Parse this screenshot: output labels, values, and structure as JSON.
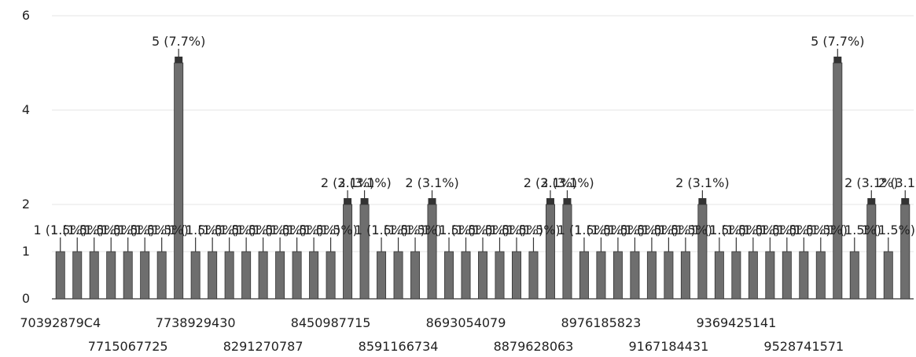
{
  "chart_data": {
    "type": "bar",
    "title": "",
    "xlabel": "",
    "ylabel": "",
    "ylim": [
      0,
      6
    ],
    "yticks": [
      "0",
      "1",
      "2",
      "4",
      "6"
    ],
    "grid": true,
    "values": [
      1,
      1,
      1,
      1,
      1,
      1,
      1,
      5,
      1,
      1,
      1,
      1,
      1,
      1,
      1,
      1,
      1,
      2,
      2,
      1,
      1,
      1,
      2,
      1,
      1,
      1,
      1,
      1,
      1,
      2,
      2,
      1,
      1,
      1,
      1,
      1,
      1,
      1,
      2,
      1,
      1,
      1,
      1,
      1,
      1,
      1,
      5,
      1,
      2,
      1,
      2
    ],
    "data_labels": [
      "1 (1.5%)",
      "1 (1.5%)",
      "1 (1.5%)",
      "1 (1.5%)",
      "1 (1.5%)",
      "1 (1.5%)",
      "1 (1.5%)",
      "5 (7.7%)",
      "1 (1.5%)",
      "1 (1.5%)",
      "1 (1.5%)",
      "1 (1.5%)",
      "1 (1.5%)",
      "1 (1.5%)",
      "1 (1.5%)",
      "1 (1.5%)",
      "1 (1.5%)",
      "2 (3.1%)",
      "2 (3.1%)",
      "1 (1.5%)",
      "1 (1.5%)",
      "1 (1.5%)",
      "2 (3.1%)",
      "1 (1.5%)",
      "1 (1.5%)",
      "1 (1.5%)",
      "1 (1.5%)",
      "1 (1.5%)",
      "1 (1.5%)",
      "2 (3.1%)",
      "2 (3.1%)",
      "1 (1.5%)",
      "1 (1.5%)",
      "1 (1.5%)",
      "1 (1.5%)",
      "1 (1.5%)",
      "1 (1.5%)",
      "1 (1.5%)",
      "2 (3.1%)",
      "1 (1.5%)",
      "1 (1.5%)",
      "1 (1.5%)",
      "1 (1.5%)",
      "1 (1.5%)",
      "1 (1.5%)",
      "1 (1.5%)",
      "5 (7.7%)",
      "1 (1.5%)",
      "2 (3.1%)",
      "1 (1.5%)",
      "2 (3.1%)"
    ],
    "tick_labels": [
      {
        "text": "70392879C4",
        "index": 0,
        "row": 0
      },
      {
        "text": "7715067725",
        "index": 4,
        "row": 1
      },
      {
        "text": "7738929430",
        "index": 8,
        "row": 0
      },
      {
        "text": "8291270787",
        "index": 12,
        "row": 1
      },
      {
        "text": "8450987715",
        "index": 16,
        "row": 0
      },
      {
        "text": "8591166734",
        "index": 20,
        "row": 1
      },
      {
        "text": "8693054079",
        "index": 24,
        "row": 0
      },
      {
        "text": "8879628063",
        "index": 28,
        "row": 1
      },
      {
        "text": "8976185823",
        "index": 32,
        "row": 0
      },
      {
        "text": "9167184431",
        "index": 36,
        "row": 1
      },
      {
        "text": "9369425141",
        "index": 40,
        "row": 0
      },
      {
        "text": "9528741571",
        "index": 44,
        "row": 1
      }
    ]
  }
}
